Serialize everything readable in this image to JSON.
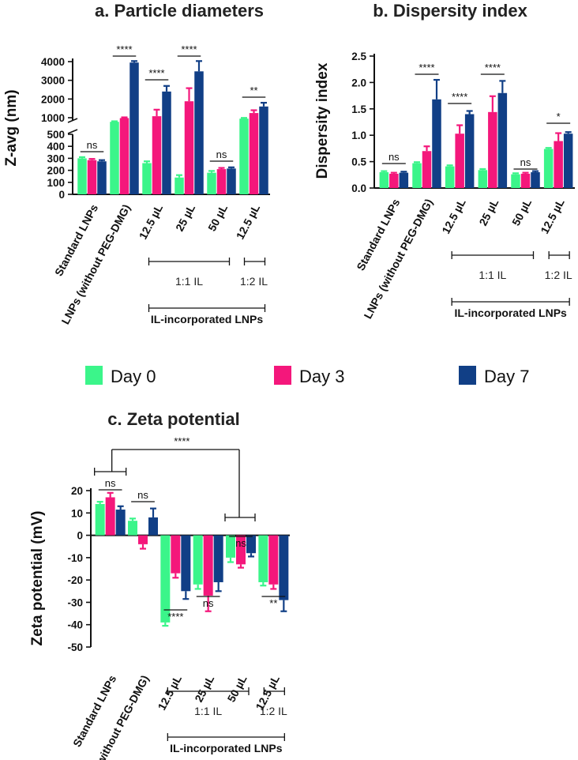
{
  "colors": {
    "day0": "#3bf58a",
    "day3": "#f4177b",
    "day7": "#113f86",
    "axis": "#111111"
  },
  "legend": [
    {
      "label": "Day 0",
      "color": "#3bf58a"
    },
    {
      "label": "Day 3",
      "color": "#f4177b"
    },
    {
      "label": "Day 7",
      "color": "#113f86"
    }
  ],
  "chart_data": [
    {
      "type": "bar",
      "title": "a. Particle diameters",
      "ylabel": "Z-avg (nm)",
      "categories": [
        "Standard LNPs",
        "LNPs (without PEG-DMG)",
        "12.5 µL",
        "25 µL",
        "50 µL",
        "12.5 µL"
      ],
      "series": [
        {
          "name": "Day 0",
          "values": [
            300,
            780,
            260,
            140,
            180,
            950
          ],
          "errors": [
            10,
            30,
            15,
            20,
            15,
            40
          ]
        },
        {
          "name": "Day 3",
          "values": [
            285,
            980,
            1080,
            1880,
            210,
            1250
          ],
          "errors": [
            10,
            40,
            350,
            700,
            10,
            150
          ]
        },
        {
          "name": "Day 7",
          "values": [
            275,
            3950,
            2400,
            3480,
            215,
            1600
          ],
          "errors": [
            10,
            80,
            300,
            550,
            10,
            200
          ]
        }
      ],
      "axis_break": {
        "lower_ticks": [
          0,
          100,
          200,
          300,
          400,
          500
        ],
        "upper_ticks": [
          1000,
          2000,
          3000,
          4000
        ]
      },
      "ylim": [
        0,
        4000
      ],
      "significance": [
        {
          "label": "ns",
          "category": "Standard LNPs"
        },
        {
          "label": "****",
          "category": "LNPs (without PEG-DMG)"
        },
        {
          "label": "****",
          "category": "12.5 µL"
        },
        {
          "label": "****",
          "category": "25 µL"
        },
        {
          "label": "ns",
          "category": "50 µL"
        },
        {
          "label": "**",
          "category": "12.5 µL"
        }
      ],
      "groups": {
        "il_11": "1:1 IL",
        "il_12": "1:2 IL",
        "il_incorporated": "IL-incorporated LNPs"
      }
    },
    {
      "type": "bar",
      "title": "b. Dispersity index",
      "ylabel": "Dispersity index",
      "categories": [
        "Standard LNPs",
        "LNPs (without PEG-DMG)",
        "12.5 µL",
        "25 µL",
        "50 µL",
        "12.5 µL"
      ],
      "series": [
        {
          "name": "Day 0",
          "values": [
            0.3,
            0.47,
            0.41,
            0.34,
            0.26,
            0.74
          ],
          "errors": [
            0.02,
            0.02,
            0.02,
            0.02,
            0.02,
            0.02
          ]
        },
        {
          "name": "Day 3",
          "values": [
            0.27,
            0.7,
            1.03,
            1.44,
            0.27,
            0.89
          ],
          "errors": [
            0.02,
            0.09,
            0.16,
            0.3,
            0.02,
            0.15
          ]
        },
        {
          "name": "Day 7",
          "values": [
            0.29,
            1.68,
            1.4,
            1.8,
            0.3,
            1.03
          ],
          "errors": [
            0.02,
            0.37,
            0.06,
            0.23,
            0.02,
            0.03
          ]
        }
      ],
      "yticks": [
        "0.0",
        "0.5",
        "1.0",
        "1.5",
        "2.0",
        "2.5"
      ],
      "ylim": [
        0,
        2.5
      ],
      "significance": [
        {
          "label": "ns",
          "category": "Standard LNPs"
        },
        {
          "label": "****",
          "category": "LNPs (without PEG-DMG)"
        },
        {
          "label": "****",
          "category": "12.5 µL"
        },
        {
          "label": "****",
          "category": "25 µL"
        },
        {
          "label": "ns",
          "category": "50 µL"
        },
        {
          "label": "*",
          "category": "12.5 µL"
        }
      ],
      "groups": {
        "il_11": "1:1 IL",
        "il_12": "1:2 IL",
        "il_incorporated": "IL-incorporated LNPs"
      }
    },
    {
      "type": "bar",
      "title": "c. Zeta potential",
      "ylabel": "Zeta potential (mV)",
      "categories": [
        "Standard LNPs",
        "LNPs (without PEG-DMG)",
        "12.5 µL",
        "25 µL",
        "50 µL",
        "12.5 µL"
      ],
      "series": [
        {
          "name": "Day 0",
          "values": [
            14,
            6.5,
            -39,
            -22,
            -10,
            -21
          ],
          "errors": [
            1,
            1,
            1.5,
            2,
            2,
            1.5
          ]
        },
        {
          "name": "Day 3",
          "values": [
            17,
            -4,
            -17,
            -27,
            -13,
            -22
          ],
          "errors": [
            2,
            2,
            2,
            7,
            1.5,
            2
          ]
        },
        {
          "name": "Day 7",
          "values": [
            11.5,
            8,
            -25,
            -21,
            -8,
            -29
          ],
          "errors": [
            1.5,
            4,
            3.5,
            4,
            1.5,
            5
          ]
        }
      ],
      "yticks": [
        "20",
        "10",
        "0",
        "-10",
        "-20",
        "-30",
        "-40",
        "-50"
      ],
      "ylim": [
        -50,
        20
      ],
      "significance": [
        {
          "label": "ns",
          "category": "Standard LNPs"
        },
        {
          "label": "ns",
          "category": "LNPs (without PEG-DMG)"
        },
        {
          "label": "****",
          "category": "12.5 µL"
        },
        {
          "label": "ns",
          "category": "25 µL"
        },
        {
          "label": "ns",
          "category": "50 µL"
        },
        {
          "label": "**",
          "category": "12.5 µL"
        },
        {
          "label": "****",
          "category": "Standard LNPs vs 50 µL"
        }
      ],
      "groups": {
        "il_11": "1:1 IL",
        "il_12": "1:2 IL",
        "il_incorporated": "IL-incorporated LNPs"
      }
    }
  ]
}
